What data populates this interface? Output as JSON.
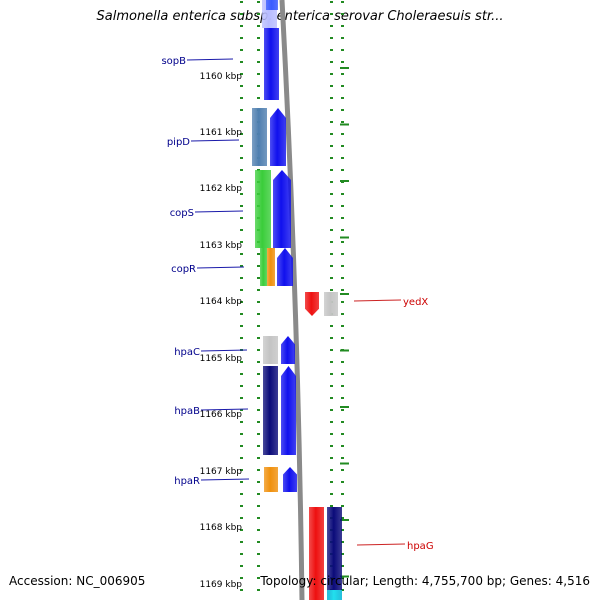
{
  "title": "Salmonella enterica subsp. enterica serovar Choleraesuis str...",
  "accession_text": "Accession: NC_006905",
  "summary_text": "Topology: circular; Length: 4,755,700 bp; Genes: 4,516",
  "colors": {
    "backbone": "#8a8a8a",
    "tick": "#228b22",
    "blue": "#1010ee",
    "navy": "#0b0b7a",
    "steel": "#4f7fb0",
    "green": "#3acd3a",
    "orange": "#f0900c",
    "grey": "#c4c4c4",
    "red": "#ee1010",
    "cyan": "#22e0ee",
    "label_left": "#00008b",
    "label_right": "#cc0000"
  },
  "ruler": {
    "unit": "kbp",
    "ticks": [
      "1160 kbp",
      "1161 kbp",
      "1162 kbp",
      "1163 kbp",
      "1164 kbp",
      "1165 kbp",
      "1166 kbp",
      "1167 kbp",
      "1168 kbp",
      "1169 kbp"
    ]
  },
  "gene_labels_left": [
    "sopB",
    "pipD",
    "copS",
    "copR",
    "hpaC",
    "hpaB",
    "hpaR"
  ],
  "gene_labels_right": [
    "yedX",
    "hpaG"
  ]
}
